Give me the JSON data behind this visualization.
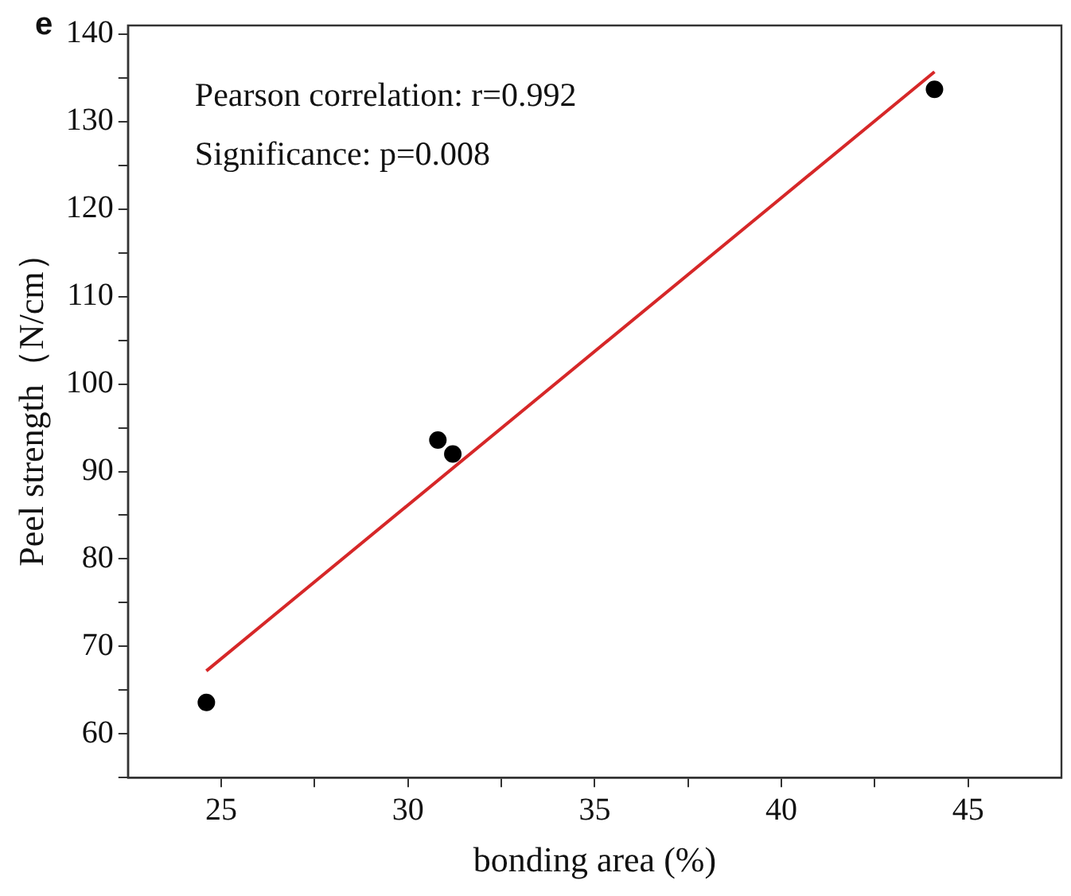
{
  "chart_data": {
    "type": "scatter",
    "xlabel": "bonding area (%)",
    "ylabel": "Peel strength（N/cm）",
    "annotations": [
      "e",
      "Pearson correlation: r=0.992",
      "Significance: p=0.008"
    ],
    "series": [
      {
        "color": "#000000",
        "marker": "circle",
        "x": [
          24.6,
          30.8,
          31.2,
          44.1
        ],
        "values": [
          63.6,
          93.6,
          92,
          133.7
        ]
      },
      {
        "type": "line",
        "color": "#d62728",
        "marker": "none",
        "x": [
          24.6,
          44.1
        ],
        "values": [
          67.2,
          135.7
        ]
      }
    ],
    "xlim": [
      22.5,
      47.5
    ],
    "xticks": [
      25,
      {
        "value": 27.5,
        "label": null
      },
      30,
      {
        "value": 32.5,
        "label": null
      },
      35,
      {
        "value": 37.5,
        "label": null
      },
      40,
      {
        "value": 42.5,
        "label": null
      },
      45
    ],
    "ylim": [
      55,
      141
    ],
    "yticks": [
      {
        "value": 55,
        "label": null
      },
      60,
      {
        "value": 65,
        "label": null
      },
      70,
      {
        "value": 75,
        "label": null
      },
      80,
      {
        "value": 85,
        "label": null
      },
      90,
      {
        "value": 95,
        "label": null
      },
      100,
      {
        "value": 105,
        "label": null
      },
      110,
      {
        "value": 115,
        "label": null
      },
      120,
      {
        "value": 125,
        "label": null
      },
      130,
      {
        "value": 135,
        "label": null
      },
      140
    ],
    "grid": false,
    "legend": false
  }
}
